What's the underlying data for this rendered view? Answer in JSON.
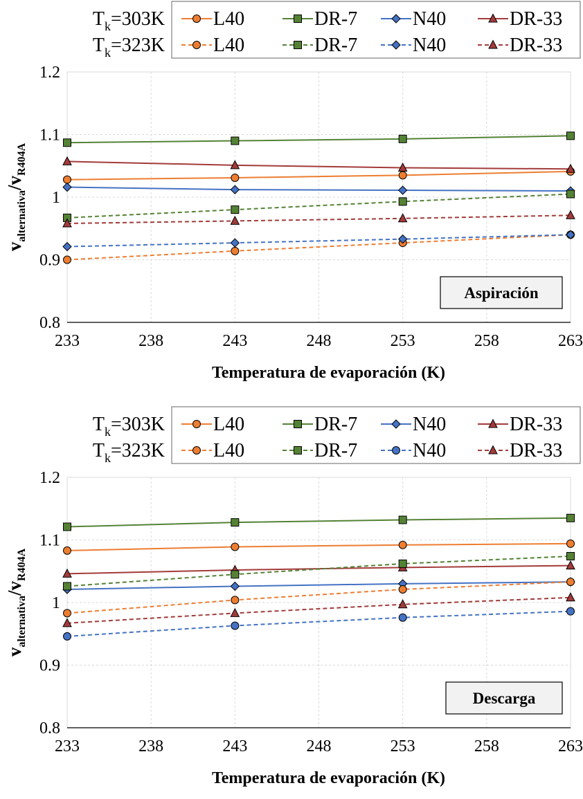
{
  "chart_data": [
    {
      "type": "line",
      "annotation": "Aspiración",
      "xlabel": "Temperatura de evaporación (K)",
      "ylabel": {
        "main": "v",
        "sub1": "alternativa",
        "mid": "/v",
        "sub2": "R404A"
      },
      "xlim": [
        233,
        263
      ],
      "ylim": [
        0.8,
        1.2
      ],
      "xticks": [
        233,
        238,
        243,
        248,
        253,
        258,
        263
      ],
      "yticks": [
        "0.8",
        "0.9",
        "1",
        "1.1",
        "1.2"
      ],
      "grid": true,
      "legend_position": "top",
      "legend_groups": [
        {
          "label_main": "T",
          "label_sub": "k",
          "label_rest": "=303K",
          "linestyle": "solid"
        },
        {
          "label_main": "T",
          "label_sub": "k",
          "label_rest": "=323K",
          "linestyle": "dashed"
        }
      ],
      "x": [
        233,
        243,
        253,
        263
      ],
      "series": [
        {
          "name": "L40",
          "group": 0,
          "marker": "circle",
          "color": "#ED7D31",
          "values": [
            1.028,
            1.031,
            1.035,
            1.041
          ]
        },
        {
          "name": "DR-7",
          "group": 0,
          "marker": "square",
          "color": "#548235",
          "values": [
            1.087,
            1.09,
            1.093,
            1.098
          ]
        },
        {
          "name": "N40",
          "group": 0,
          "marker": "diamond",
          "color": "#4472C4",
          "values": [
            1.016,
            1.012,
            1.011,
            1.01
          ]
        },
        {
          "name": "DR-33",
          "group": 0,
          "marker": "triangle",
          "color": "#A33A3A",
          "values": [
            1.057,
            1.051,
            1.047,
            1.045
          ]
        },
        {
          "name": "L40",
          "group": 1,
          "marker": "circle",
          "color": "#ED7D31",
          "values": [
            0.9,
            0.914,
            0.927,
            0.94
          ]
        },
        {
          "name": "DR-7",
          "group": 1,
          "marker": "square",
          "color": "#548235",
          "values": [
            0.967,
            0.98,
            0.993,
            1.005
          ]
        },
        {
          "name": "N40",
          "group": 1,
          "marker": "diamond",
          "color": "#4472C4",
          "values": [
            0.921,
            0.927,
            0.933,
            0.94
          ]
        },
        {
          "name": "DR-33",
          "group": 1,
          "marker": "triangle",
          "color": "#A33A3A",
          "values": [
            0.958,
            0.962,
            0.966,
            0.971
          ]
        }
      ]
    },
    {
      "type": "line",
      "annotation": "Descarga",
      "xlabel": "Temperatura de evaporación (K)",
      "ylabel": {
        "main": "v",
        "sub1": "alternativa",
        "mid": "/v",
        "sub2": "R404A"
      },
      "xlim": [
        233,
        263
      ],
      "ylim": [
        0.8,
        1.2
      ],
      "xticks": [
        233,
        238,
        243,
        248,
        253,
        258,
        263
      ],
      "yticks": [
        "0.8",
        "0.9",
        "1",
        "1.1",
        "1.2"
      ],
      "grid": true,
      "legend_position": "top",
      "legend_groups": [
        {
          "label_main": "T",
          "label_sub": "k",
          "label_rest": "=303K",
          "linestyle": "solid"
        },
        {
          "label_main": "T",
          "label_sub": "k",
          "label_rest": "=323K",
          "linestyle": "dashed"
        }
      ],
      "x": [
        233,
        243,
        253,
        263
      ],
      "series": [
        {
          "name": "L40",
          "group": 0,
          "marker": "circle",
          "color": "#ED7D31",
          "values": [
            1.083,
            1.089,
            1.092,
            1.094
          ]
        },
        {
          "name": "DR-7",
          "group": 0,
          "marker": "square",
          "color": "#548235",
          "values": [
            1.121,
            1.128,
            1.132,
            1.135
          ]
        },
        {
          "name": "N40",
          "group": 0,
          "marker": "diamond",
          "color": "#4472C4",
          "values": [
            1.021,
            1.026,
            1.03,
            1.033
          ]
        },
        {
          "name": "DR-33",
          "group": 0,
          "marker": "triangle",
          "color": "#A33A3A",
          "values": [
            1.046,
            1.052,
            1.056,
            1.059
          ]
        },
        {
          "name": "L40",
          "group": 1,
          "marker": "circle",
          "color": "#ED7D31",
          "values": [
            0.983,
            1.004,
            1.021,
            1.033
          ]
        },
        {
          "name": "DR-7",
          "group": 1,
          "marker": "square",
          "color": "#548235",
          "values": [
            1.026,
            1.045,
            1.062,
            1.074
          ]
        },
        {
          "name": "N40",
          "group": 1,
          "marker": "circle",
          "color": "#4472C4",
          "values": [
            0.946,
            0.963,
            0.976,
            0.986
          ]
        },
        {
          "name": "DR-33",
          "group": 1,
          "marker": "triangle",
          "color": "#A33A3A",
          "values": [
            0.967,
            0.983,
            0.997,
            1.008
          ]
        }
      ]
    }
  ]
}
